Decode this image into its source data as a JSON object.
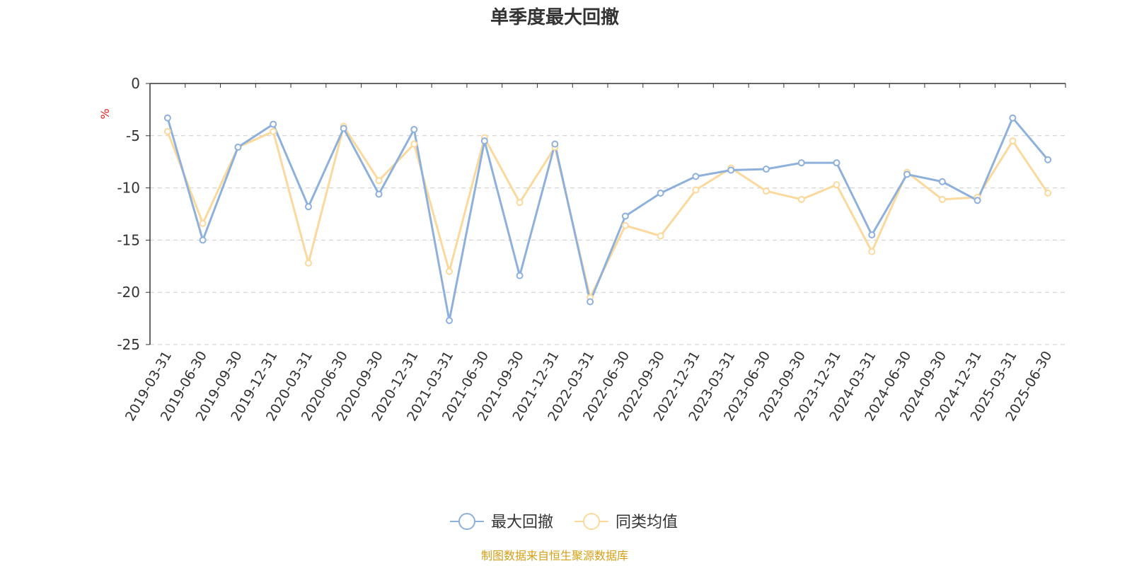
{
  "chart_data": {
    "type": "line",
    "title": "单季度最大回撤",
    "ylabel": "%",
    "ylim": [
      -25,
      0
    ],
    "yticks": [
      0,
      -5,
      -10,
      -15,
      -20,
      -25
    ],
    "grid": true,
    "legend_position": "bottom-center",
    "categories": [
      "2019-03-31",
      "2019-06-30",
      "2019-09-30",
      "2019-12-31",
      "2020-03-31",
      "2020-06-30",
      "2020-09-30",
      "2020-12-31",
      "2021-03-31",
      "2021-06-30",
      "2021-09-30",
      "2021-12-31",
      "2022-03-31",
      "2022-06-30",
      "2022-09-30",
      "2022-12-31",
      "2023-03-31",
      "2023-06-30",
      "2023-09-30",
      "2023-12-31",
      "2024-03-31",
      "2024-06-30",
      "2024-09-30",
      "2024-12-31",
      "2025-03-31",
      "2025-06-30"
    ],
    "series": [
      {
        "name": "最大回撤",
        "color": "#8eb0dc",
        "values": [
          -3.3,
          -15.0,
          -6.1,
          -3.9,
          -11.8,
          -4.3,
          -10.6,
          -4.4,
          -22.7,
          -5.5,
          -18.4,
          -5.8,
          -20.9,
          -12.7,
          -10.5,
          -8.9,
          -8.3,
          -8.2,
          -7.6,
          -7.6,
          -14.5,
          -8.7,
          -9.4,
          -11.2,
          -3.3,
          -7.3
        ]
      },
      {
        "name": "同类均值",
        "color": "#fbd99c",
        "values": [
          -4.6,
          -13.4,
          -6.1,
          -4.6,
          -17.2,
          -4.1,
          -9.3,
          -5.8,
          -18.0,
          -5.2,
          -11.4,
          -6.1,
          -20.5,
          -13.6,
          -14.6,
          -10.2,
          -8.1,
          -10.3,
          -11.1,
          -9.7,
          -16.1,
          -8.5,
          -11.1,
          -10.9,
          -5.5,
          -10.5
        ]
      }
    ]
  },
  "footer": {
    "source": "制图数据来自恒生聚源数据库",
    "source_color": "#d4a017"
  },
  "colors": {
    "axis": "#333333",
    "grid": "#cccccc",
    "ylabel": "#e02020"
  }
}
